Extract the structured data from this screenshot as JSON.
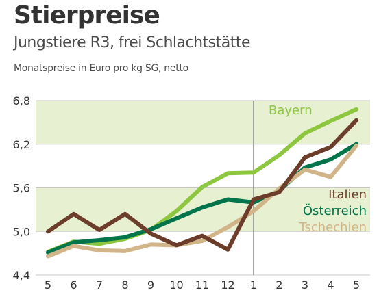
{
  "chart_data": {
    "type": "line",
    "title": "Stierpreise",
    "subtitle": "Jungstiere R3, frei Schlachtstätte",
    "caption": "Monatspreise in Euro pro kg SG, netto",
    "categories": [
      "5",
      "6",
      "7",
      "8",
      "9",
      "10",
      "11",
      "12",
      "1",
      "2",
      "3",
      "4",
      "5"
    ],
    "ylim": [
      4.4,
      6.8
    ],
    "yticks": [
      "4,4",
      "5,0",
      "5,6",
      "6,2",
      "6,8"
    ],
    "year_divider_after_category": "12",
    "series": [
      {
        "name": "Bayern",
        "color": "#8dc63f",
        "values": [
          4.72,
          4.86,
          4.83,
          4.9,
          5.02,
          5.28,
          5.61,
          5.8,
          5.81,
          6.05,
          6.35,
          6.52,
          6.68
        ]
      },
      {
        "name": "Österreich",
        "color": "#00744a",
        "values": [
          4.71,
          4.85,
          4.88,
          4.92,
          5.03,
          5.18,
          5.33,
          5.44,
          5.4,
          5.56,
          5.88,
          5.99,
          6.2
        ]
      },
      {
        "name": "Tschechien",
        "color": "#d1b488",
        "values": [
          4.66,
          4.8,
          4.74,
          4.73,
          4.82,
          4.81,
          4.87,
          5.06,
          5.28,
          5.59,
          5.85,
          5.75,
          6.18
        ]
      },
      {
        "name": "Italien",
        "color": "#6b3d2a",
        "values": [
          5.0,
          5.24,
          5.02,
          5.24,
          4.97,
          4.81,
          4.94,
          4.75,
          5.44,
          5.54,
          6.02,
          6.16,
          6.53
        ]
      }
    ]
  }
}
